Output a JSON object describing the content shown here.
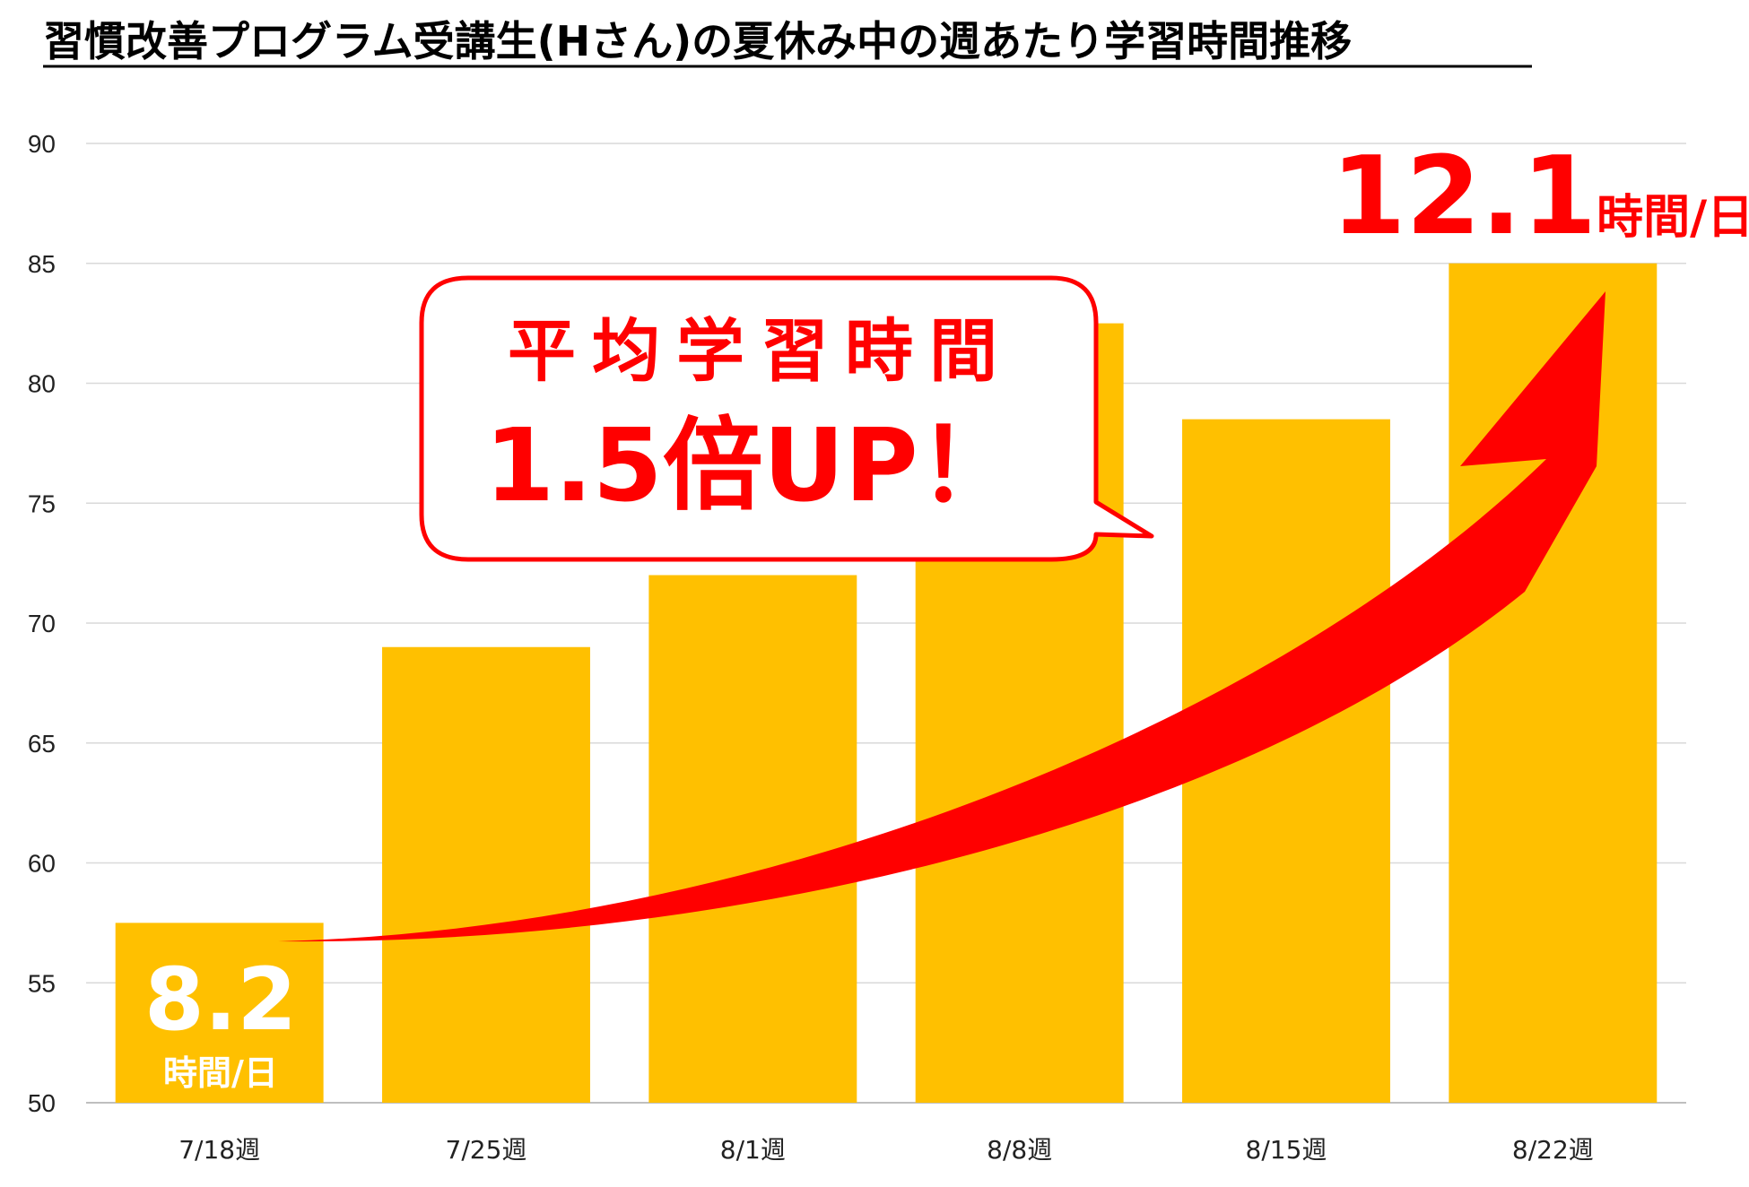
{
  "chart_data": {
    "type": "bar",
    "title": "習慣改善プログラム受講生(Hさん)の夏休み中の週あたり学習時間推移",
    "categories": [
      "7/18週",
      "7/25週",
      "8/1週",
      "8/8週",
      "8/15週",
      "8/22週"
    ],
    "values": [
      57.5,
      69,
      72,
      82.5,
      78.5,
      85
    ],
    "ylim": [
      50,
      90
    ],
    "yticks": [
      50,
      55,
      60,
      65,
      70,
      75,
      80,
      85,
      90
    ],
    "grid": true,
    "legend": "none",
    "bar_color": "#FFC000",
    "arrow_color": "#FF0000",
    "accent_color": "#FF0000"
  },
  "annotations": {
    "first_value": "8.2",
    "first_unit": "時間/日",
    "last_value": "12.1",
    "last_unit": "時間/日",
    "callout_line1": "平均学習時間",
    "callout_line2": "1.5倍UP！"
  }
}
